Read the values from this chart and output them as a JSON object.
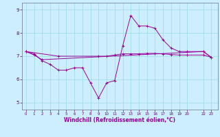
{
  "xlabel": "Windchill (Refroidissement éolien,°C)",
  "background_color": "#cceeff",
  "line_color": "#990099",
  "grid_color": "#99dddd",
  "xlim": [
    -0.5,
    23.8
  ],
  "ylim": [
    4.7,
    9.3
  ],
  "yticks": [
    5,
    6,
    7,
    8,
    9
  ],
  "xticks": [
    0,
    1,
    2,
    3,
    4,
    5,
    6,
    7,
    8,
    9,
    10,
    11,
    12,
    13,
    14,
    15,
    16,
    17,
    18,
    19,
    20,
    22,
    23
  ],
  "xtick_labels": [
    "0",
    "1",
    "2",
    "3",
    "4",
    "5",
    "6",
    "7",
    "8",
    "9",
    "10",
    "11",
    "12",
    "13",
    "14",
    "15",
    "16",
    "17",
    "18",
    "19",
    "20",
    "22",
    "23"
  ],
  "line1_x": [
    0,
    1,
    2,
    3,
    4,
    5,
    6,
    7,
    8,
    9,
    10,
    11,
    12,
    13,
    14,
    15,
    16,
    17,
    18,
    19,
    20,
    22,
    23
  ],
  "line1_y": [
    7.2,
    7.1,
    6.8,
    6.65,
    6.4,
    6.4,
    6.5,
    6.5,
    5.85,
    5.2,
    5.85,
    5.95,
    7.45,
    8.75,
    8.3,
    8.3,
    8.2,
    7.7,
    7.35,
    7.2,
    7.2,
    7.2,
    6.95
  ],
  "line2_x": [
    0,
    1,
    2,
    22,
    23
  ],
  "line2_y": [
    7.2,
    7.05,
    6.85,
    7.2,
    6.95
  ],
  "line3_x": [
    0,
    4,
    9,
    10,
    11,
    12,
    13,
    14,
    15,
    16,
    17,
    18,
    19,
    20,
    22,
    23
  ],
  "line3_y": [
    7.2,
    7.0,
    7.0,
    7.0,
    7.05,
    7.1,
    7.1,
    7.1,
    7.12,
    7.12,
    7.1,
    7.07,
    7.05,
    7.05,
    7.05,
    6.95
  ]
}
